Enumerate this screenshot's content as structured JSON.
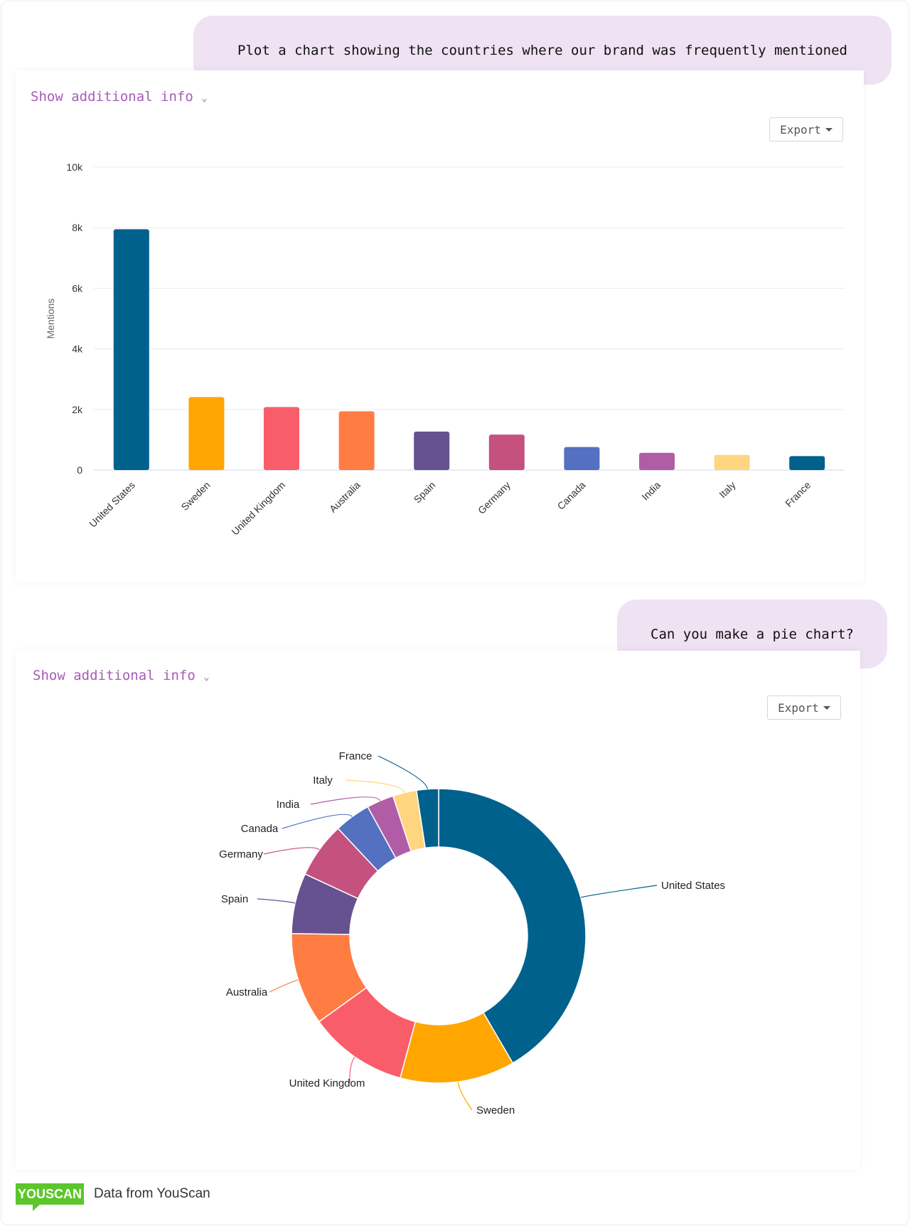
{
  "messages": [
    {
      "text": "Plot a chart showing the countries where our brand was frequently mentioned"
    },
    {
      "text": "Can you make a pie chart?"
    }
  ],
  "cards": [
    {
      "show_info": "Show additional info",
      "export": "Export"
    },
    {
      "show_info": "Show additional info",
      "export": "Export"
    }
  ],
  "footer": {
    "logo": "YOUSCAN",
    "source": "Data from YouScan"
  },
  "chart_data": [
    {
      "type": "bar",
      "categories": [
        "United States",
        "Sweden",
        "United Kingdom",
        "Australia",
        "Spain",
        "Germany",
        "Canada",
        "India",
        "Italy",
        "France"
      ],
      "values": [
        7950,
        2410,
        2080,
        1940,
        1270,
        1170,
        760,
        570,
        500,
        460
      ],
      "colors": [
        "#00618d",
        "#ffa600",
        "#f95d6a",
        "#ff7c43",
        "#665191",
        "#c5517f",
        "#5470c0",
        "#b15da6",
        "#ffd580",
        "#00618d"
      ],
      "ylabel": "Mentions",
      "ylim": [
        0,
        10000
      ],
      "yticks": [
        "0",
        "2k",
        "4k",
        "6k",
        "8k",
        "10k"
      ],
      "grid": true
    },
    {
      "type": "pie",
      "donut": true,
      "categories": [
        "United States",
        "Sweden",
        "United Kingdom",
        "Australia",
        "Spain",
        "Germany",
        "Canada",
        "India",
        "Italy",
        "France"
      ],
      "values": [
        7950,
        2410,
        2080,
        1940,
        1270,
        1170,
        760,
        570,
        500,
        460
      ],
      "colors": [
        "#00618d",
        "#ffa600",
        "#f95d6a",
        "#ff7c43",
        "#665191",
        "#c5517f",
        "#5470c0",
        "#b15da6",
        "#ffd580",
        "#00618d"
      ]
    }
  ]
}
